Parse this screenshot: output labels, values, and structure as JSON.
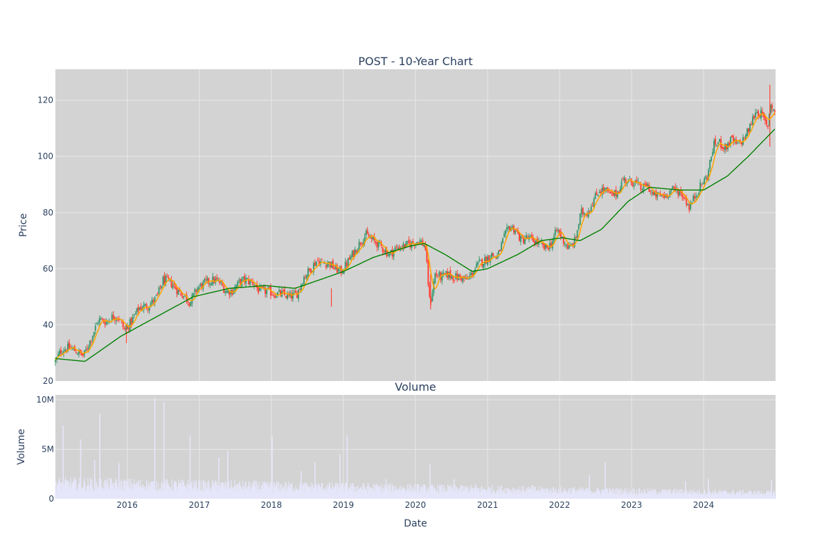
{
  "chart_data": [
    {
      "type": "candlestick",
      "title": "POST - 10-Year Chart",
      "ylabel": "Price",
      "xlim": [
        "2015-01-02",
        "2024-12-31"
      ],
      "ylim": [
        20,
        131
      ],
      "yticks": [
        20,
        40,
        60,
        80,
        100,
        120
      ],
      "grid": true,
      "colors": {
        "up": "#3d9970",
        "down": "#ff4136",
        "ma_short": "#ffa500",
        "ma_long": "#008000",
        "plot_bg": "#d3d3d3",
        "grid": "#e8e8e8"
      },
      "price_path": [
        [
          "2015-01-02",
          27
        ],
        [
          "2015-02-01",
          31
        ],
        [
          "2015-03-15",
          32
        ],
        [
          "2015-05-01",
          30
        ],
        [
          "2015-05-25",
          29
        ],
        [
          "2015-07-01",
          35
        ],
        [
          "2015-08-10",
          42
        ],
        [
          "2015-09-15",
          41
        ],
        [
          "2015-10-20",
          43
        ],
        [
          "2015-11-15",
          43
        ],
        [
          "2015-12-20",
          38
        ],
        [
          "2016-01-20",
          41
        ],
        [
          "2016-03-01",
          46
        ],
        [
          "2016-04-20",
          47
        ],
        [
          "2016-06-01",
          50
        ],
        [
          "2016-07-01",
          56
        ],
        [
          "2016-08-10",
          55
        ],
        [
          "2016-09-15",
          52
        ],
        [
          "2016-10-20",
          50
        ],
        [
          "2016-11-15",
          48
        ],
        [
          "2016-12-20",
          53
        ],
        [
          "2017-02-01",
          55
        ],
        [
          "2017-03-15",
          56
        ],
        [
          "2017-04-15",
          55
        ],
        [
          "2017-05-15",
          52
        ],
        [
          "2017-06-15",
          52
        ],
        [
          "2017-07-20",
          55
        ],
        [
          "2017-08-20",
          56
        ],
        [
          "2017-10-01",
          55
        ],
        [
          "2017-11-01",
          52
        ],
        [
          "2017-12-15",
          52
        ],
        [
          "2018-01-15",
          51
        ],
        [
          "2018-02-20",
          51
        ],
        [
          "2018-04-01",
          50
        ],
        [
          "2018-05-10",
          51
        ],
        [
          "2018-06-15",
          57
        ],
        [
          "2018-07-20",
          60
        ],
        [
          "2018-08-20",
          63
        ],
        [
          "2018-09-20",
          62
        ],
        [
          "2018-10-20",
          62
        ],
        [
          "2018-11-20",
          60
        ],
        [
          "2018-12-20",
          59
        ],
        [
          "2019-01-20",
          62
        ],
        [
          "2019-02-25",
          66
        ],
        [
          "2019-04-01",
          70
        ],
        [
          "2019-04-25",
          72
        ],
        [
          "2019-06-01",
          70
        ],
        [
          "2019-07-10",
          68
        ],
        [
          "2019-08-20",
          65
        ],
        [
          "2019-09-20",
          67
        ],
        [
          "2019-11-01",
          68
        ],
        [
          "2019-12-15",
          69
        ],
        [
          "2020-01-20",
          70
        ],
        [
          "2020-02-20",
          68
        ],
        [
          "2020-03-15",
          47
        ],
        [
          "2020-04-10",
          58
        ],
        [
          "2020-05-15",
          57
        ],
        [
          "2020-06-15",
          58
        ],
        [
          "2020-07-15",
          57
        ],
        [
          "2020-08-15",
          57
        ],
        [
          "2020-09-20",
          56
        ],
        [
          "2020-10-20",
          59
        ],
        [
          "2020-11-20",
          62
        ],
        [
          "2020-12-20",
          63
        ],
        [
          "2021-01-20",
          65
        ],
        [
          "2021-02-20",
          64
        ],
        [
          "2021-03-20",
          70
        ],
        [
          "2021-04-20",
          75
        ],
        [
          "2021-05-20",
          74
        ],
        [
          "2021-06-20",
          70
        ],
        [
          "2021-07-20",
          71
        ],
        [
          "2021-08-20",
          70
        ],
        [
          "2021-09-20",
          69
        ],
        [
          "2021-10-20",
          67
        ],
        [
          "2021-11-20",
          69
        ],
        [
          "2021-12-20",
          74
        ],
        [
          "2022-01-20",
          70
        ],
        [
          "2022-02-20",
          67
        ],
        [
          "2022-03-20",
          70
        ],
        [
          "2022-04-20",
          80
        ],
        [
          "2022-05-20",
          80
        ],
        [
          "2022-06-20",
          84
        ],
        [
          "2022-07-20",
          88
        ],
        [
          "2022-08-20",
          88
        ],
        [
          "2022-09-20",
          86
        ],
        [
          "2022-10-20",
          87
        ],
        [
          "2022-11-20",
          92
        ],
        [
          "2022-12-20",
          91
        ],
        [
          "2023-01-20",
          91
        ],
        [
          "2023-02-20",
          88
        ],
        [
          "2023-03-20",
          90
        ],
        [
          "2023-04-20",
          86
        ],
        [
          "2023-05-20",
          86
        ],
        [
          "2023-06-20",
          86
        ],
        [
          "2023-07-20",
          88
        ],
        [
          "2023-08-20",
          88
        ],
        [
          "2023-09-20",
          86
        ],
        [
          "2023-10-20",
          82
        ],
        [
          "2023-11-20",
          86
        ],
        [
          "2023-12-20",
          90
        ],
        [
          "2024-01-20",
          93
        ],
        [
          "2024-02-20",
          104
        ],
        [
          "2024-03-20",
          105
        ],
        [
          "2024-04-20",
          103
        ],
        [
          "2024-05-20",
          106
        ],
        [
          "2024-06-20",
          104
        ],
        [
          "2024-07-20",
          106
        ],
        [
          "2024-08-20",
          110
        ],
        [
          "2024-09-20",
          116
        ],
        [
          "2024-10-20",
          115
        ],
        [
          "2024-11-20",
          110
        ],
        [
          "2024-12-05",
          119
        ],
        [
          "2024-12-31",
          115
        ]
      ],
      "ma_long_path": [
        [
          "2015-01-02",
          28
        ],
        [
          "2015-06-01",
          27
        ],
        [
          "2015-12-01",
          36
        ],
        [
          "2016-06-01",
          43
        ],
        [
          "2016-12-01",
          50
        ],
        [
          "2017-06-01",
          53
        ],
        [
          "2017-12-01",
          54
        ],
        [
          "2018-05-01",
          53
        ],
        [
          "2018-09-01",
          56
        ],
        [
          "2019-01-01",
          59
        ],
        [
          "2019-06-01",
          64
        ],
        [
          "2019-12-01",
          68
        ],
        [
          "2020-02-15",
          69
        ],
        [
          "2020-06-01",
          65
        ],
        [
          "2020-10-15",
          59
        ],
        [
          "2021-01-01",
          60
        ],
        [
          "2021-06-01",
          65
        ],
        [
          "2021-10-01",
          70
        ],
        [
          "2022-01-15",
          71
        ],
        [
          "2022-04-15",
          70
        ],
        [
          "2022-08-01",
          74
        ],
        [
          "2022-12-15",
          84
        ],
        [
          "2023-04-01",
          89
        ],
        [
          "2023-09-01",
          88
        ],
        [
          "2024-01-01",
          88
        ],
        [
          "2024-05-01",
          93
        ],
        [
          "2024-08-15",
          100
        ],
        [
          "2024-12-31",
          110
        ]
      ]
    },
    {
      "type": "bar",
      "title": "Volume",
      "xlabel": "Date",
      "ylabel": "Volume",
      "ylim": [
        0,
        10.5
      ],
      "yticks": [
        0,
        5,
        10
      ],
      "ytick_labels": [
        "0",
        "5M",
        "10M"
      ],
      "xtick_labels": [
        "2016",
        "2017",
        "2018",
        "2019",
        "2020",
        "2021",
        "2022",
        "2023",
        "2024"
      ],
      "color": "#e6e6fa",
      "spikes": [
        [
          "2015-02-10",
          7.4
        ],
        [
          "2015-05-10",
          6.0
        ],
        [
          "2015-07-20",
          3.9
        ],
        [
          "2015-08-15",
          8.6
        ],
        [
          "2015-11-20",
          3.6
        ],
        [
          "2016-05-20",
          10.2
        ],
        [
          "2016-07-05",
          9.8
        ],
        [
          "2016-11-15",
          6.4
        ],
        [
          "2017-04-10",
          4.2
        ],
        [
          "2017-05-25",
          4.8
        ],
        [
          "2018-01-05",
          6.3
        ],
        [
          "2018-06-01",
          2.8
        ],
        [
          "2018-08-10",
          3.7
        ],
        [
          "2018-12-15",
          4.5
        ],
        [
          "2019-01-20",
          6.4
        ],
        [
          "2019-08-05",
          2.0
        ],
        [
          "2020-03-15",
          3.5
        ],
        [
          "2020-07-15",
          2.0
        ],
        [
          "2020-11-01",
          1.5
        ],
        [
          "2021-08-15",
          1.4
        ],
        [
          "2022-06-01",
          2.4
        ],
        [
          "2022-08-20",
          3.7
        ],
        [
          "2023-10-01",
          1.8
        ],
        [
          "2024-01-25",
          2.0
        ],
        [
          "2024-12-10",
          1.9
        ]
      ]
    }
  ]
}
